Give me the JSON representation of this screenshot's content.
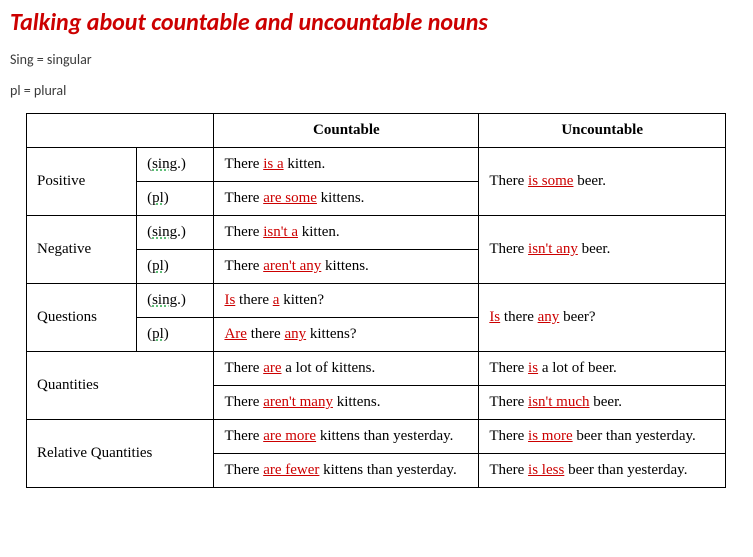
{
  "title": "Talking about countable and uncountable nouns",
  "legend": {
    "sing": "Sing = singular",
    "pl": "pl = plural"
  },
  "headers": {
    "blank": "",
    "countable": "Countable",
    "uncountable": "Uncountable"
  },
  "rowLabels": {
    "positive": "Positive",
    "negative": "Negative",
    "questions": "Questions",
    "quantities": "Quantities",
    "relative": "Relative Quantities"
  },
  "num": {
    "sing": "sing.",
    "pl": "pl"
  },
  "colors": {
    "accent": "#cc0000",
    "dotted": "#2aa84a",
    "text": "#000000",
    "bg": "#ffffff"
  },
  "cells": {
    "pos_sing_c_a": "There ",
    "pos_sing_c_u": "is a",
    "pos_sing_c_b": " kitten.",
    "pos_pl_c_a": "There ",
    "pos_pl_c_u": "are some",
    "pos_pl_c_b": " kittens.",
    "pos_uc_a": "There ",
    "pos_uc_u": "is some",
    "pos_uc_b": " beer.",
    "neg_sing_c_a": "There ",
    "neg_sing_c_u": "isn't a",
    "neg_sing_c_b": " kitten.",
    "neg_pl_c_a": "There ",
    "neg_pl_c_u": "aren't any",
    "neg_pl_c_b": " kittens.",
    "neg_uc_a": "There ",
    "neg_uc_u": "isn't any",
    "neg_uc_b": " beer.",
    "q_sing_c_u1": "Is",
    "q_sing_c_mid": " there ",
    "q_sing_c_u2": "a",
    "q_sing_c_b": " kitten?",
    "q_pl_c_u1": "Are",
    "q_pl_c_mid": " there ",
    "q_pl_c_u2": "any",
    "q_pl_c_b": " kittens?",
    "q_uc_u1": "Is",
    "q_uc_mid": " there ",
    "q_uc_u2": "any",
    "q_uc_b": " beer?",
    "qty1_c_a": "There ",
    "qty1_c_u": "are",
    "qty1_c_b": " a lot of kittens.",
    "qty1_u_a": "There ",
    "qty1_u_u": "is",
    "qty1_u_b": " a lot of beer.",
    "qty2_c_a": "There ",
    "qty2_c_u": "aren't many",
    "qty2_c_b": " kittens.",
    "qty2_u_a": "There ",
    "qty2_u_u": "isn't much",
    "qty2_u_b": " beer.",
    "rel1_c_a": "There ",
    "rel1_c_u": "are more",
    "rel1_c_b": " kittens than yesterday.",
    "rel1_u_a": "There ",
    "rel1_u_u": "is more",
    "rel1_u_b": " beer than yesterday.",
    "rel2_c_a": "There ",
    "rel2_c_u": "are fewer",
    "rel2_c_b": " kittens than yesterday.",
    "rel2_u_a": "There ",
    "rel2_u_u": "is less",
    "rel2_u_b": " beer than yesterday."
  }
}
